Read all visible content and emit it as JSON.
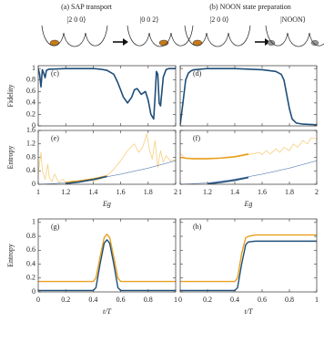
{
  "schematic": {
    "titles": [
      "(a) SAP transport",
      "(b) NOON state preparation"
    ],
    "kets": [
      "|2 0 0⟩",
      "|0 0 2⟩",
      "|2 0 0⟩",
      "|NOON⟩"
    ]
  },
  "chart_data": [
    {
      "type": "line",
      "panel_label": "(c)",
      "ylabel": "Fidelity",
      "xlim": [
        1,
        2
      ],
      "ylim": [
        0,
        1.05
      ],
      "xticks": [
        1,
        1.2,
        1.4,
        1.6,
        1.8,
        2
      ],
      "yticks": [
        0,
        0.2,
        0.4,
        0.6,
        0.8,
        1
      ],
      "show_xtick_labels": false,
      "show_ytick_labels": true,
      "series": [
        {
          "color": "#1f4e79",
          "linewidth": 1.6,
          "x": [
            1,
            1.01,
            1.02,
            1.03,
            1.04,
            1.05,
            1.06,
            1.08,
            1.1,
            1.2,
            1.3,
            1.4,
            1.45,
            1.5,
            1.55,
            1.58,
            1.62,
            1.65,
            1.68,
            1.7,
            1.72,
            1.75,
            1.78,
            1.8,
            1.82,
            1.84,
            1.85,
            1.86,
            1.87,
            1.88,
            1.89,
            1.91,
            1.93,
            1.95,
            2
          ],
          "values": [
            1,
            0.9,
            0.68,
            0.98,
            0.92,
            0.84,
            0.97,
            0.99,
            0.99,
            1,
            1,
            1,
            0.99,
            0.97,
            0.9,
            0.75,
            0.5,
            0.4,
            0.5,
            0.63,
            0.65,
            0.55,
            0.6,
            0.45,
            0.2,
            0.12,
            0.5,
            0.95,
            0.9,
            0.4,
            0.35,
            0.85,
            0.98,
            1,
            1
          ]
        }
      ]
    },
    {
      "type": "line",
      "panel_label": "(d)",
      "xlim": [
        1,
        2
      ],
      "ylim": [
        0,
        1.05
      ],
      "xticks": [
        1,
        1.2,
        1.4,
        1.6,
        1.8,
        2
      ],
      "yticks": [
        0,
        0.2,
        0.4,
        0.6,
        0.8,
        1
      ],
      "show_xtick_labels": false,
      "show_ytick_labels": false,
      "series": [
        {
          "color": "#1f4e79",
          "linewidth": 1.6,
          "x": [
            1,
            1.02,
            1.04,
            1.06,
            1.08,
            1.1,
            1.15,
            1.2,
            1.4,
            1.6,
            1.7,
            1.74,
            1.76,
            1.78,
            1.8,
            1.82,
            1.85,
            1.9,
            2
          ],
          "values": [
            0.02,
            0.4,
            0.8,
            0.92,
            0.96,
            0.98,
            0.99,
            1,
            1,
            0.98,
            0.95,
            0.9,
            0.8,
            0.55,
            0.3,
            0.12,
            0.05,
            0.03,
            0.02
          ]
        }
      ]
    },
    {
      "type": "line",
      "panel_label": "(e)",
      "ylabel": "Entropy",
      "xlabel": "Eg",
      "xlim": [
        1,
        2
      ],
      "ylim": [
        0,
        1.6
      ],
      "xticks": [
        1,
        1.2,
        1.4,
        1.6,
        1.8,
        2
      ],
      "yticks": [
        0,
        0.4,
        0.8,
        1.2,
        1.6
      ],
      "show_xtick_labels": true,
      "show_ytick_labels": true,
      "series": [
        {
          "color": "#f6cf7e",
          "linewidth": 0.8,
          "x": [
            1,
            1.02,
            1.03,
            1.05,
            1.07,
            1.08,
            1.1,
            1.12,
            1.15,
            1.18,
            1.2,
            1.25,
            1.3,
            1.35,
            1.4,
            1.45,
            1.5,
            1.55,
            1.6,
            1.65,
            1.7,
            1.73,
            1.76,
            1.79,
            1.81,
            1.83,
            1.85,
            1.87,
            1.89,
            1.91,
            1.93,
            1.96,
            2
          ],
          "values": [
            0.3,
            0.95,
            0.4,
            0.15,
            0.6,
            0.2,
            0.08,
            0.3,
            0.05,
            0.15,
            0.05,
            0.1,
            0.06,
            0.12,
            0.1,
            0.15,
            0.25,
            0.45,
            0.7,
            1.0,
            1.2,
            0.95,
            1.1,
            1.5,
            1.0,
            0.75,
            1.3,
            0.5,
            1.0,
            0.65,
            0.85,
            0.7,
            0.72
          ]
        },
        {
          "color": "#5b7fb5",
          "linewidth": 0.6,
          "x": [
            1,
            1.2,
            1.4,
            1.6,
            1.8,
            2
          ],
          "values": [
            0,
            0.04,
            0.15,
            0.3,
            0.48,
            0.7
          ]
        },
        {
          "color": "#e8a020",
          "linewidth": 1.6,
          "x": [
            1.2,
            1.3,
            1.4,
            1.5
          ],
          "values": [
            0.05,
            0.1,
            0.16,
            0.25
          ]
        },
        {
          "color": "#1f4e79",
          "linewidth": 1.6,
          "x": [
            1.2,
            1.3,
            1.4,
            1.5
          ],
          "values": [
            0.02,
            0.07,
            0.14,
            0.23
          ]
        }
      ]
    },
    {
      "type": "line",
      "panel_label": "(f)",
      "xlabel": "Eg",
      "xlim": [
        1,
        2
      ],
      "ylim": [
        0,
        1.6
      ],
      "xticks": [
        1,
        1.2,
        1.4,
        1.6,
        1.8,
        2
      ],
      "yticks": [
        0,
        0.4,
        0.8,
        1.2,
        1.6
      ],
      "show_xtick_labels": true,
      "show_ytick_labels": false,
      "series": [
        {
          "color": "#f6cf7e",
          "linewidth": 0.8,
          "x": [
            1,
            1.03,
            1.06,
            1.1,
            1.2,
            1.3,
            1.4,
            1.5,
            1.55,
            1.58,
            1.6,
            1.63,
            1.66,
            1.7,
            1.73,
            1.76,
            1.8,
            1.83,
            1.86,
            1.9,
            1.93,
            1.96,
            2
          ],
          "values": [
            0.92,
            0.8,
            0.76,
            0.75,
            0.75,
            0.77,
            0.8,
            0.88,
            0.92,
            0.95,
            0.88,
            1.0,
            0.9,
            1.05,
            0.95,
            1.1,
            1.0,
            1.2,
            1.1,
            1.3,
            1.2,
            1.38,
            1.35
          ]
        },
        {
          "color": "#5b7fb5",
          "linewidth": 0.6,
          "x": [
            1,
            1.2,
            1.4,
            1.6,
            1.8,
            2
          ],
          "values": [
            0,
            0.04,
            0.15,
            0.3,
            0.48,
            0.7
          ]
        },
        {
          "color": "#e8a020",
          "linewidth": 1.6,
          "x": [
            1,
            1.05,
            1.1,
            1.2,
            1.3,
            1.4,
            1.5
          ],
          "values": [
            0.8,
            0.77,
            0.76,
            0.76,
            0.78,
            0.82,
            0.9
          ]
        },
        {
          "color": "#1f4e79",
          "linewidth": 1.6,
          "x": [
            1.2,
            1.3,
            1.4,
            1.5
          ],
          "values": [
            0.01,
            0.06,
            0.12,
            0.2
          ]
        }
      ]
    },
    {
      "type": "line",
      "panel_label": "(g)",
      "ylabel": "Entropy",
      "xlabel": "t/T",
      "xlim": [
        0,
        1
      ],
      "ylim": [
        0,
        1.05
      ],
      "xticks": [
        0,
        0.2,
        0.4,
        0.6,
        0.8,
        1
      ],
      "yticks": [
        0,
        0.2,
        0.4,
        0.6,
        0.8,
        1
      ],
      "show_xtick_labels": true,
      "show_ytick_labels": true,
      "series": [
        {
          "color": "#e8a020",
          "linewidth": 1.4,
          "x": [
            0,
            0.4,
            0.42,
            0.45,
            0.48,
            0.5,
            0.52,
            0.55,
            0.58,
            0.6,
            1
          ],
          "values": [
            0.15,
            0.15,
            0.2,
            0.5,
            0.78,
            0.83,
            0.78,
            0.5,
            0.2,
            0.15,
            0.15
          ]
        },
        {
          "color": "#1f4e79",
          "linewidth": 1.4,
          "x": [
            0,
            0.4,
            0.42,
            0.45,
            0.48,
            0.5,
            0.52,
            0.55,
            0.58,
            0.6,
            1
          ],
          "values": [
            0.02,
            0.02,
            0.06,
            0.4,
            0.7,
            0.75,
            0.7,
            0.4,
            0.06,
            0.02,
            0.02
          ]
        }
      ]
    },
    {
      "type": "line",
      "panel_label": "(h)",
      "xlabel": "t/T",
      "xlim": [
        0,
        1
      ],
      "ylim": [
        0,
        1.05
      ],
      "xticks": [
        0,
        0.2,
        0.4,
        0.6,
        0.8,
        1
      ],
      "yticks": [
        0,
        0.2,
        0.4,
        0.6,
        0.8,
        1
      ],
      "show_xtick_labels": true,
      "show_ytick_labels": false,
      "series": [
        {
          "color": "#e8a020",
          "linewidth": 1.4,
          "x": [
            0,
            0.4,
            0.42,
            0.45,
            0.48,
            0.5,
            0.55,
            0.6,
            1
          ],
          "values": [
            0.15,
            0.15,
            0.2,
            0.55,
            0.78,
            0.8,
            0.82,
            0.82,
            0.82
          ]
        },
        {
          "color": "#1f4e79",
          "linewidth": 1.4,
          "x": [
            0,
            0.4,
            0.42,
            0.45,
            0.48,
            0.5,
            0.55,
            0.6,
            1
          ],
          "values": [
            0.02,
            0.02,
            0.06,
            0.4,
            0.68,
            0.72,
            0.73,
            0.73,
            0.73
          ]
        }
      ]
    }
  ]
}
